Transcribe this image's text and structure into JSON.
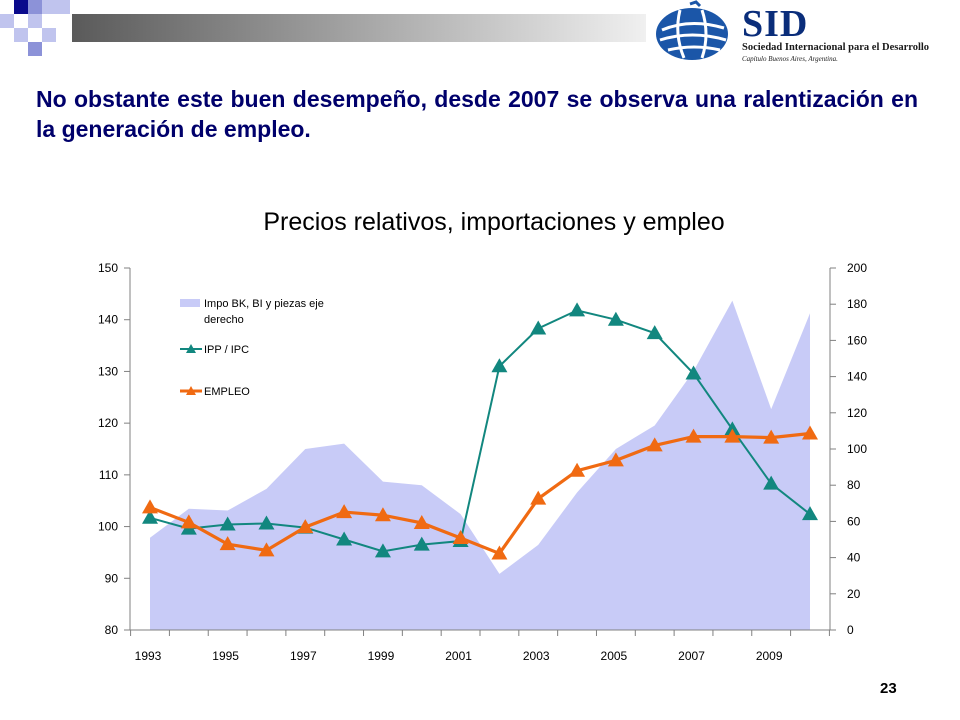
{
  "slide": {
    "heading": "No obstante este buen desempeño, desde 2007 se observa una ralentización en la generación de empleo.",
    "page_number": "23"
  },
  "logo": {
    "name": "SID",
    "subtitle": "Sociedad Internacional para el Desarrollo",
    "subtitle2": "Capítulo Buenos Aires, Argentina."
  },
  "colors": {
    "heading": "#00006b",
    "area": "#c8cbf7",
    "ipp_line": "#12877f",
    "empleo_line": "#f06a12"
  },
  "chart_data": {
    "type": "line",
    "title": "Precios relativos, importaciones y empleo",
    "x": [
      1993,
      1994,
      1995,
      1996,
      1997,
      1998,
      1999,
      2000,
      2001,
      2002,
      2003,
      2004,
      2005,
      2006,
      2007,
      2008,
      2009,
      2010
    ],
    "x_ticks": [
      "1993",
      "1995",
      "1997",
      "1999",
      "2001",
      "2003",
      "2005",
      "2007",
      "2009"
    ],
    "y_left": {
      "min": 80,
      "max": 150,
      "ticks": [
        "80",
        "90",
        "100",
        "110",
        "120",
        "130",
        "140",
        "150"
      ]
    },
    "y_right": {
      "min": 0,
      "max": 200,
      "ticks": [
        "0",
        "20",
        "40",
        "60",
        "80",
        "100",
        "120",
        "140",
        "160",
        "180",
        "200"
      ]
    },
    "legend_position": "top-left",
    "series": [
      {
        "name": "Impo BK, BI y piezas eje derecho",
        "kind": "area",
        "axis": "right",
        "values": [
          51,
          67,
          66,
          78,
          100,
          103,
          82,
          80,
          64,
          31,
          47,
          76,
          100,
          113,
          143,
          182,
          122,
          175
        ]
      },
      {
        "name": "IPP / IPC",
        "kind": "line",
        "axis": "left",
        "values": [
          101.7,
          99.6,
          100.4,
          100.6,
          99.8,
          97.5,
          95.2,
          96.5,
          97.2,
          131,
          138.3,
          141.8,
          140,
          137.4,
          129.6,
          118.8,
          108.3,
          102.4
        ]
      },
      {
        "name": "EMPLEO",
        "kind": "line",
        "axis": "left",
        "values": [
          103.7,
          100.8,
          96.6,
          95.4,
          99.9,
          102.8,
          102.2,
          100.7,
          97.8,
          94.8,
          105.4,
          110.8,
          112.8,
          115.7,
          117.4,
          117.4,
          117.2,
          118
        ]
      }
    ]
  }
}
